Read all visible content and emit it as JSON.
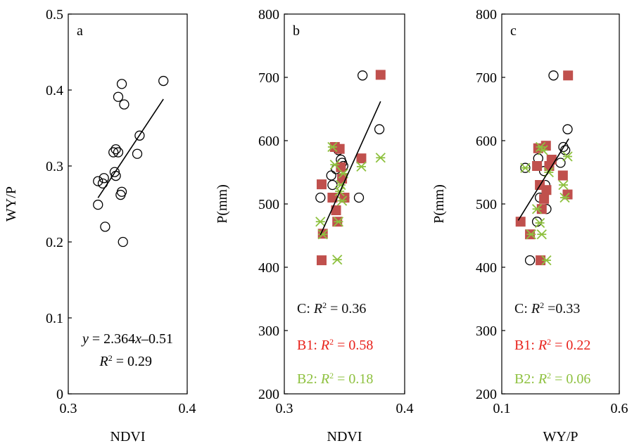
{
  "chart_data": [
    {
      "panel_label": "a",
      "type": "scatter",
      "xlabel": "NDVI",
      "ylabel": "WY/P",
      "xlim": [
        0.3,
        0.4
      ],
      "ylim": [
        0,
        0.5
      ],
      "x_ticks": [
        "0.3",
        "0.4"
      ],
      "y_ticks": [
        "0",
        "0.1",
        "0.2",
        "0.3",
        "0.4",
        "0.5"
      ],
      "annotations": {
        "equation": "y = 2.364x–0.51",
        "r2": "R² = 0.29"
      },
      "series": [
        {
          "marker": "open-circle",
          "color": "#000000",
          "points": [
            [
              0.325,
              0.249
            ],
            [
              0.325,
              0.28
            ],
            [
              0.329,
              0.277
            ],
            [
              0.33,
              0.284
            ],
            [
              0.331,
              0.22
            ],
            [
              0.338,
              0.318
            ],
            [
              0.339,
              0.292
            ],
            [
              0.34,
              0.287
            ],
            [
              0.34,
              0.322
            ],
            [
              0.342,
              0.391
            ],
            [
              0.342,
              0.318
            ],
            [
              0.344,
              0.262
            ],
            [
              0.345,
              0.266
            ],
            [
              0.346,
              0.2
            ],
            [
              0.345,
              0.408
            ],
            [
              0.347,
              0.381
            ],
            [
              0.358,
              0.316
            ],
            [
              0.36,
              0.34
            ],
            [
              0.38,
              0.412
            ]
          ]
        }
      ],
      "fit_line": [
        [
          0.325,
          0.258
        ],
        [
          0.38,
          0.388
        ]
      ]
    },
    {
      "panel_label": "b",
      "type": "scatter",
      "xlabel": "NDVI",
      "ylabel": "P(mm)",
      "xlim": [
        0.3,
        0.4
      ],
      "ylim": [
        200,
        800
      ],
      "x_ticks": [
        "0.3",
        "0.4"
      ],
      "y_ticks": [
        "200",
        "300",
        "400",
        "500",
        "600",
        "700",
        "800"
      ],
      "annotations": [
        {
          "label": "C: R² = 0.36",
          "color": "#111111"
        },
        {
          "label": "B1: R² = 0.58",
          "color": "#e8231c"
        },
        {
          "label": "B2: R² = 0.18",
          "color": "#8ec13f"
        }
      ],
      "series": [
        {
          "name": "C",
          "marker": "open-circle",
          "color": "#000000",
          "points": [
            [
              0.33,
              510
            ],
            [
              0.339,
              545
            ],
            [
              0.34,
              530
            ],
            [
              0.343,
              555
            ],
            [
              0.345,
              585
            ],
            [
              0.347,
              570
            ],
            [
              0.348,
              565
            ],
            [
              0.349,
              560
            ],
            [
              0.35,
              510
            ],
            [
              0.362,
              510
            ],
            [
              0.365,
              703
            ],
            [
              0.379,
              618
            ]
          ]
        },
        {
          "name": "B1",
          "marker": "filled-square",
          "color": "#c0504d",
          "points": [
            [
              0.331,
              531
            ],
            [
              0.331,
              411
            ],
            [
              0.332,
              453
            ],
            [
              0.34,
              510
            ],
            [
              0.342,
              590
            ],
            [
              0.343,
              490
            ],
            [
              0.344,
              472
            ],
            [
              0.346,
              587
            ],
            [
              0.347,
              558
            ],
            [
              0.348,
              540
            ],
            [
              0.35,
              510
            ],
            [
              0.364,
              572
            ],
            [
              0.38,
              704
            ]
          ]
        },
        {
          "name": "B2",
          "marker": "asterisk",
          "color": "#8ec13f",
          "points": [
            [
              0.33,
              472
            ],
            [
              0.332,
              452
            ],
            [
              0.34,
              590
            ],
            [
              0.342,
              562
            ],
            [
              0.344,
              412
            ],
            [
              0.345,
              472
            ],
            [
              0.346,
              520
            ],
            [
              0.347,
              530
            ],
            [
              0.348,
              505
            ],
            [
              0.349,
              548
            ],
            [
              0.364,
              559
            ],
            [
              0.38,
              573
            ]
          ]
        }
      ],
      "fit_line": [
        [
          0.33,
          451
        ],
        [
          0.38,
          662
        ]
      ]
    },
    {
      "panel_label": "c",
      "type": "scatter",
      "xlabel": "WY/P",
      "ylabel": "P(mm)",
      "xlim": [
        0.1,
        0.6
      ],
      "ylim": [
        200,
        800
      ],
      "x_ticks": [
        "0.1",
        "0.6"
      ],
      "y_ticks": [
        "200",
        "300",
        "400",
        "500",
        "600",
        "700",
        "800"
      ],
      "annotations": [
        {
          "label": "C: R² =0.33",
          "color": "#111111"
        },
        {
          "label": "B1: R² = 0.22",
          "color": "#e8231c"
        },
        {
          "label": "B2: R² = 0.06",
          "color": "#8ec13f"
        }
      ],
      "series": [
        {
          "name": "C",
          "marker": "open-circle",
          "color": "#000000",
          "points": [
            [
              0.2,
              557
            ],
            [
              0.22,
              411
            ],
            [
              0.25,
              472
            ],
            [
              0.255,
              572
            ],
            [
              0.262,
              510
            ],
            [
              0.28,
              552
            ],
            [
              0.285,
              530
            ],
            [
              0.29,
              492
            ],
            [
              0.32,
              703
            ],
            [
              0.35,
              565
            ],
            [
              0.362,
              590
            ],
            [
              0.37,
              585
            ],
            [
              0.38,
              618
            ]
          ]
        },
        {
          "name": "B1",
          "marker": "filled-square",
          "color": "#c0504d",
          "points": [
            [
              0.18,
              472
            ],
            [
              0.22,
              452
            ],
            [
              0.25,
              560
            ],
            [
              0.255,
              588
            ],
            [
              0.262,
              530
            ],
            [
              0.265,
              411
            ],
            [
              0.27,
              492
            ],
            [
              0.28,
              508
            ],
            [
              0.288,
              592
            ],
            [
              0.29,
              522
            ],
            [
              0.302,
              560
            ],
            [
              0.312,
              570
            ],
            [
              0.36,
              545
            ],
            [
              0.38,
              515
            ],
            [
              0.382,
              703
            ]
          ]
        },
        {
          "name": "B2",
          "marker": "asterisk",
          "color": "#8ec13f",
          "points": [
            [
              0.2,
              557
            ],
            [
              0.225,
              452
            ],
            [
              0.25,
              492
            ],
            [
              0.262,
              470
            ],
            [
              0.265,
              590
            ],
            [
              0.27,
              452
            ],
            [
              0.275,
              585
            ],
            [
              0.29,
              411
            ],
            [
              0.3,
              550
            ],
            [
              0.362,
              530
            ],
            [
              0.368,
              510
            ],
            [
              0.38,
              575
            ]
          ]
        }
      ],
      "fit_line": [
        [
          0.17,
          474
        ],
        [
          0.385,
          603
        ]
      ]
    }
  ]
}
